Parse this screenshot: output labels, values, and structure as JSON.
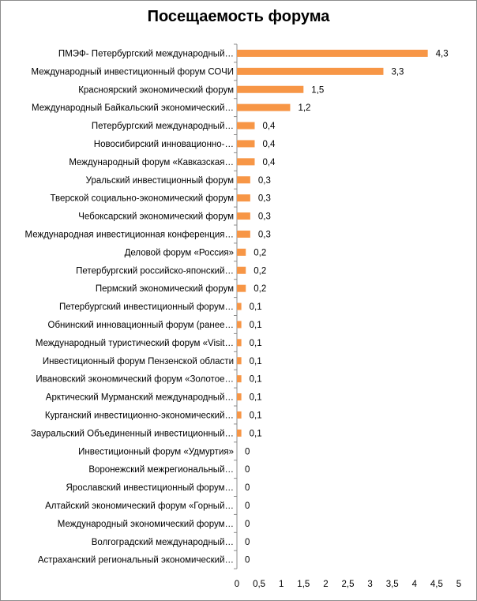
{
  "chart_data": {
    "type": "bar",
    "orientation": "horizontal",
    "title": "Посещаемость форума",
    "xlabel": "",
    "ylabel": "",
    "xlim": [
      0,
      5
    ],
    "x_ticks": [
      "0",
      "0,5",
      "1",
      "1,5",
      "2",
      "2,5",
      "3",
      "3,5",
      "4",
      "4,5",
      "5"
    ],
    "grid": false,
    "legend": "none",
    "bar_color": "#f79646",
    "categories": [
      "ПМЭФ- Петербургский  международный…",
      "Международный инвестиционный форум СОЧИ",
      "Красноярский экономический форум",
      "Международный Байкальский экономический…",
      "Петербургский международный…",
      "Новосибирский инновационно-…",
      "Международный форум «Кавказская…",
      "Уральский инвестиционный форум",
      "Тверской  социально-экономический форум",
      "Чебоксарский экономический форум",
      "Международная  инвестиционная конференция…",
      "Деловой  форум «Россия»",
      "Петербургский российско-японский…",
      "Пермский экономический форум",
      "Петербургский  инвестиционный форум…",
      "Обнинский инновационный  форум (ранее…",
      "Международный  туристический форум «Visit…",
      "Инвестиционный форум Пензенской области",
      "Ивановский экономический форум «Золотое…",
      "Арктический Мурманский  международный…",
      "Курганский инвестиционно-экономический…",
      "Зауральский Объединенный инвестиционный…",
      "Инвестиционный форум «Удмуртия»",
      "Воронежский межрегиональный…",
      "Ярославский инвестиционный форум…",
      "Алтайский экономический форум  «Горный…",
      "Международный экономический форум…",
      "Волгоградский международный…",
      "Астраханский региональный экономический…"
    ],
    "values": [
      4.3,
      3.3,
      1.5,
      1.2,
      0.4,
      0.4,
      0.4,
      0.3,
      0.3,
      0.3,
      0.3,
      0.2,
      0.2,
      0.2,
      0.1,
      0.1,
      0.1,
      0.1,
      0.1,
      0.1,
      0.1,
      0.1,
      0,
      0,
      0,
      0,
      0,
      0,
      0
    ],
    "value_labels": [
      "4,3",
      "3,3",
      "1,5",
      "1,2",
      "0,4",
      "0,4",
      "0,4",
      "0,3",
      "0,3",
      "0,3",
      "0,3",
      "0,2",
      "0,2",
      "0,2",
      "0,1",
      "0,1",
      "0,1",
      "0,1",
      "0,1",
      "0,1",
      "0,1",
      "0,1",
      "0",
      "0",
      "0",
      "0",
      "0",
      "0",
      "0"
    ]
  }
}
